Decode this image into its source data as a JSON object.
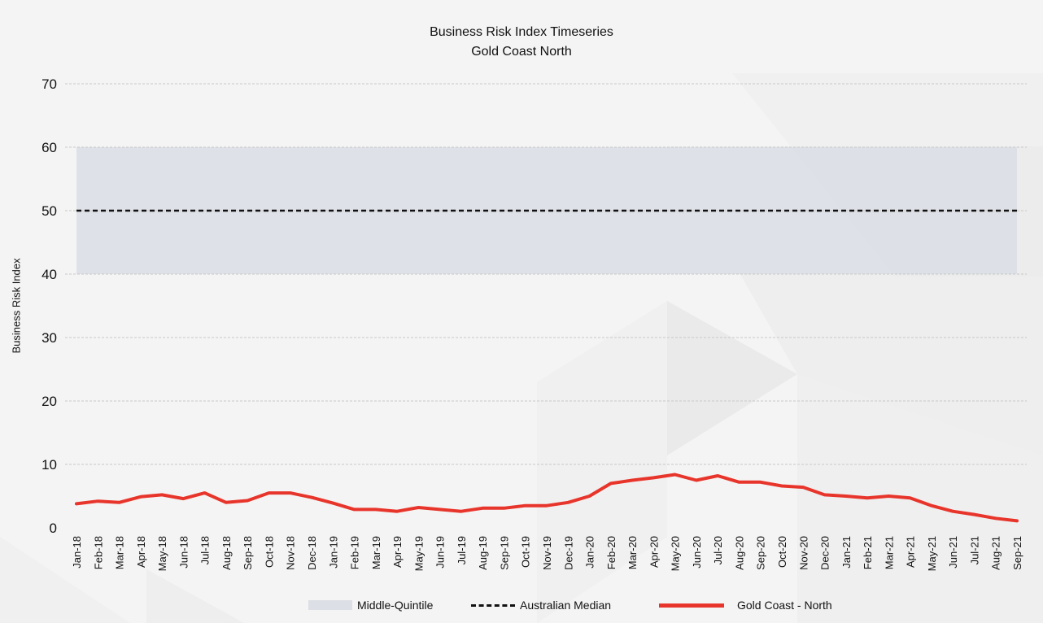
{
  "chart_data": {
    "type": "line",
    "title": "Business Risk Index Timeseries",
    "subtitle": "Gold Coast North",
    "ylabel": "Business Risk Index",
    "xlabel": "",
    "ylim": [
      0,
      70
    ],
    "yticks": [
      0,
      10,
      20,
      30,
      40,
      50,
      60,
      70
    ],
    "grid": true,
    "legend_position": "bottom",
    "categories": [
      "Jan-18",
      "Feb-18",
      "Mar-18",
      "Apr-18",
      "May-18",
      "Jun-18",
      "Jul-18",
      "Aug-18",
      "Sep-18",
      "Oct-18",
      "Nov-18",
      "Dec-18",
      "Jan-19",
      "Feb-19",
      "Mar-19",
      "Apr-19",
      "May-19",
      "Jun-19",
      "Jul-19",
      "Aug-19",
      "Sep-19",
      "Oct-19",
      "Nov-19",
      "Dec-19",
      "Jan-20",
      "Feb-20",
      "Mar-20",
      "Apr-20",
      "May-20",
      "Jun-20",
      "Jul-20",
      "Aug-20",
      "Sep-20",
      "Oct-20",
      "Nov-20",
      "Dec-20",
      "Jan-21",
      "Feb-21",
      "Mar-21",
      "Apr-21",
      "May-21",
      "Jun-21",
      "Jul-21",
      "Aug-21",
      "Sep-21"
    ],
    "band": {
      "name": "Middle-Quintile",
      "from": 40,
      "to": 60,
      "color": "#dcdfe6"
    },
    "reference_line": {
      "name": "Australian Median",
      "value": 50,
      "color": "#111111"
    },
    "series": [
      {
        "name": "Gold Coast - North",
        "color": "#e8352b",
        "values": [
          3.8,
          4.2,
          4.0,
          4.9,
          5.2,
          4.6,
          5.5,
          4.0,
          4.3,
          5.5,
          5.5,
          4.8,
          3.9,
          2.9,
          2.9,
          2.6,
          3.2,
          2.9,
          2.6,
          3.1,
          3.1,
          3.5,
          3.5,
          4.0,
          5.0,
          7.0,
          7.5,
          7.9,
          8.4,
          7.5,
          8.2,
          7.2,
          7.2,
          6.6,
          6.4,
          5.2,
          5.0,
          4.7,
          5.0,
          4.7,
          3.5,
          2.6,
          2.1,
          1.5,
          1.1
        ]
      }
    ]
  }
}
